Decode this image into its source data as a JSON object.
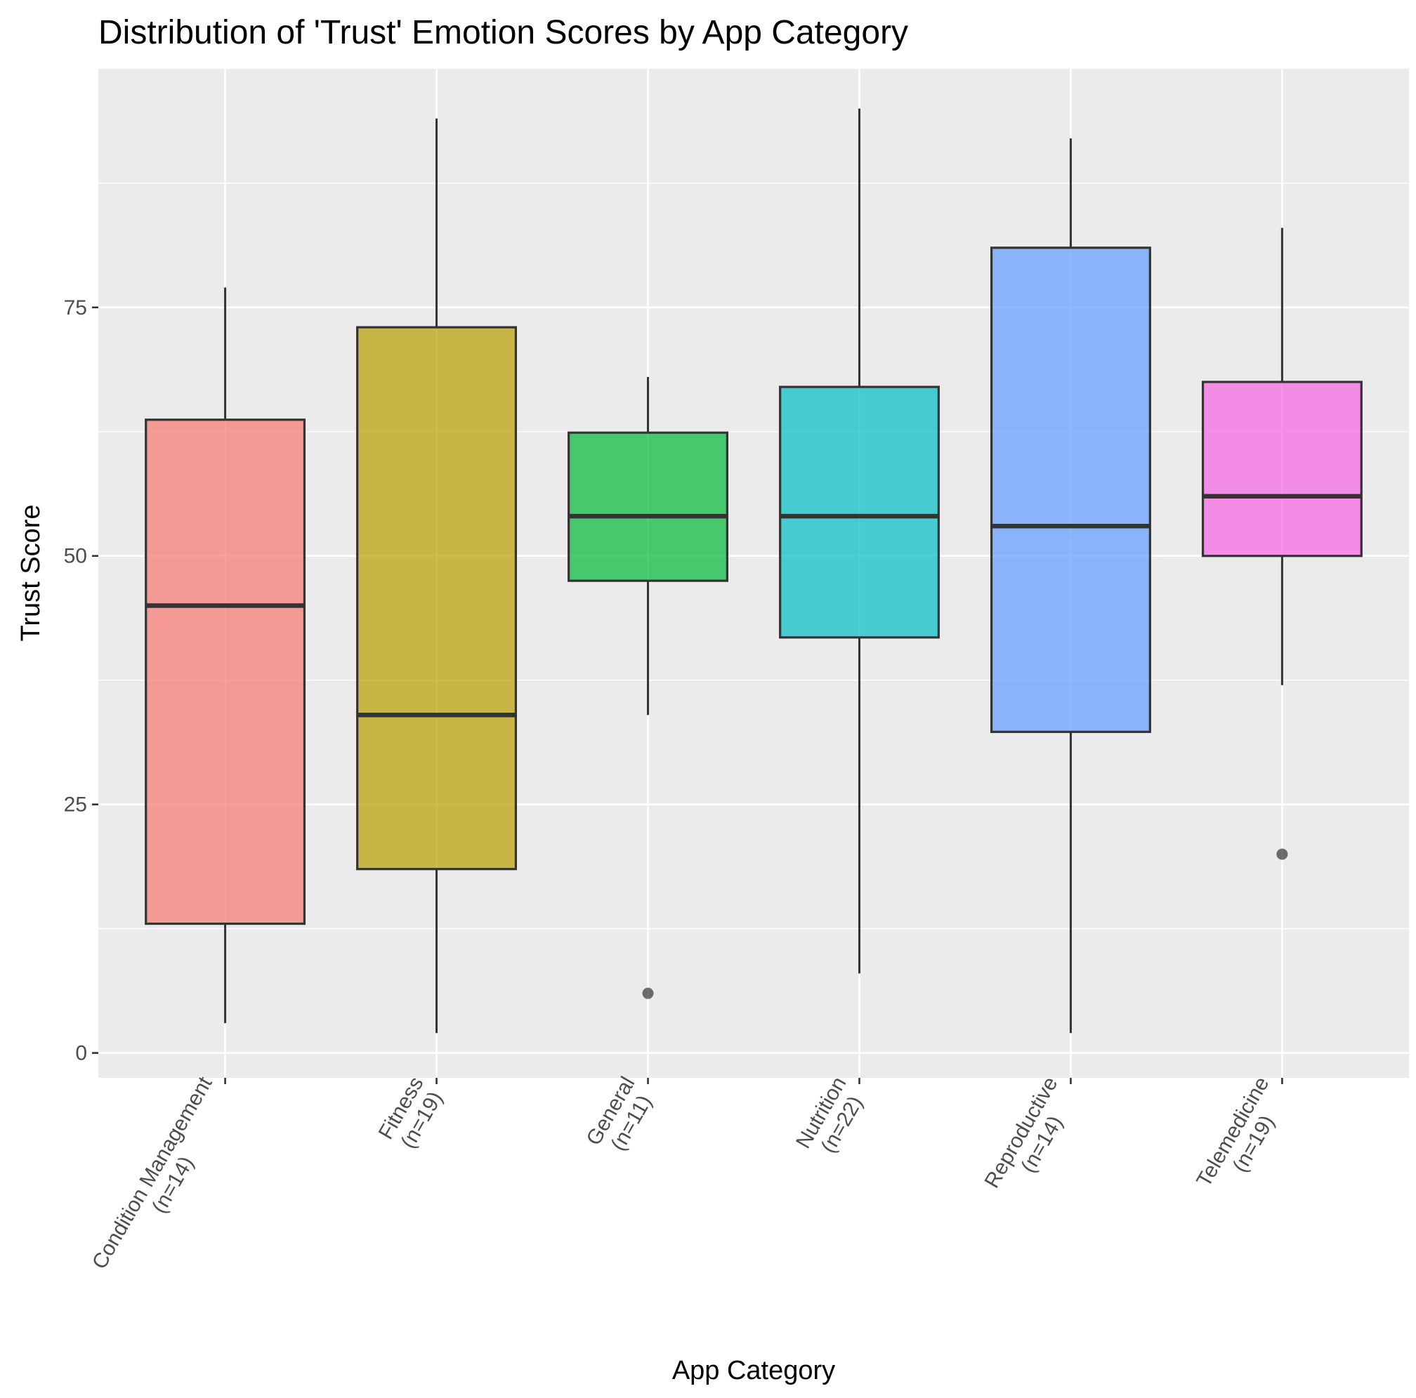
{
  "chart_data": {
    "type": "boxplot",
    "title": "Distribution of 'Trust' Emotion Scores by App Category",
    "xlabel": "App Category",
    "ylabel": "Trust Score",
    "ylim": [
      -2.5,
      99
    ],
    "yticks": [
      0,
      25,
      50,
      75
    ],
    "grid": true,
    "legend": "none",
    "categories": [
      {
        "name": "Condition Management",
        "n_label": "(n=14)",
        "color": "#F8766D",
        "min": 3,
        "q1": 13,
        "median": 45,
        "q3": 63.7,
        "max": 77,
        "outliers": []
      },
      {
        "name": "Fitness",
        "n_label": "(n=19)",
        "color": "#B79F00",
        "min": 2,
        "q1": 18.5,
        "median": 34,
        "q3": 73,
        "max": 94,
        "outliers": []
      },
      {
        "name": "General",
        "n_label": "(n=11)",
        "color": "#00BA38",
        "min": 34,
        "q1": 47.5,
        "median": 54,
        "q3": 62.4,
        "max": 68,
        "outliers": [
          6
        ]
      },
      {
        "name": "Nutrition",
        "n_label": "(n=22)",
        "color": "#00BFC4",
        "min": 8,
        "q1": 41.8,
        "median": 54,
        "q3": 67,
        "max": 95,
        "outliers": []
      },
      {
        "name": "Reproductive",
        "n_label": "(n=14)",
        "color": "#619CFF",
        "min": 2,
        "q1": 32.3,
        "median": 53,
        "q3": 81,
        "max": 92,
        "outliers": []
      },
      {
        "name": "Telemedicine",
        "n_label": "(n=19)",
        "color": "#F564E3",
        "min": 37,
        "q1": 50,
        "median": 56,
        "q3": 67.5,
        "max": 83,
        "outliers": [
          20
        ]
      }
    ]
  }
}
